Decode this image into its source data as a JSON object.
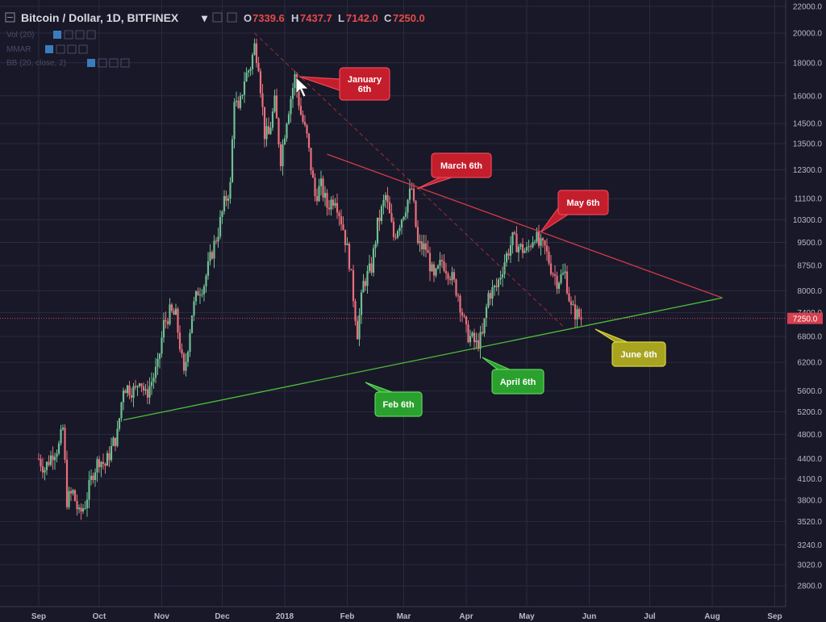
{
  "header": {
    "symbol": "Bitcoin / Dollar, 1D, BITFINEX",
    "o_label": "O",
    "o_value": "7339.6",
    "h_label": "H",
    "h_value": "7437.7",
    "l_label": "L",
    "l_value": "7142.0",
    "c_label": "C",
    "c_value": "7250.0",
    "indicators": [
      "Vol (20)",
      "MMAR",
      "BB (20, close, 2)"
    ]
  },
  "chart_data": {
    "type": "candlestick",
    "title": "Bitcoin / Dollar, 1D, BITFINEX",
    "y_scale": "log",
    "ylim": [
      2600,
      22500
    ],
    "y_ticks": [
      2800,
      3020,
      3240,
      3520,
      3800,
      4100,
      4400,
      4800,
      5200,
      5600,
      6200,
      6800,
      7400,
      8000,
      8750,
      9500,
      10300,
      11100,
      12300,
      13500,
      14500,
      16000,
      18000,
      20000,
      22000
    ],
    "y_tick_labels": [
      "2800.0",
      "3020.0",
      "3240.0",
      "3520.0",
      "3800.0",
      "4100.0",
      "4400.0",
      "4800.0",
      "5200.0",
      "5600.0",
      "6200.0",
      "6800.0",
      "7400.0",
      "8000.0",
      "8750.0",
      "9500.0",
      "10300.0",
      "11100.0",
      "12300.0",
      "13500.0",
      "14500.0",
      "16000.0",
      "18000.0",
      "20000.0",
      "22000.0"
    ],
    "x_months": [
      "Sep",
      "Oct",
      "Nov",
      "Dec",
      "2018",
      "Feb",
      "Mar",
      "Apr",
      "May",
      "Jun",
      "Jul",
      "Aug",
      "Sep"
    ],
    "last_price": 7250.0,
    "last_price_label": "7250.0",
    "trend_points": [
      [
        "2017-09-01",
        4400
      ],
      [
        "2017-09-04",
        4250
      ],
      [
        "2017-09-08",
        4500
      ],
      [
        "2017-09-11",
        4600
      ],
      [
        "2017-09-13",
        4900
      ],
      [
        "2017-09-15",
        3800
      ],
      [
        "2017-09-18",
        3900
      ],
      [
        "2017-09-21",
        3600
      ],
      [
        "2017-09-24",
        3750
      ],
      [
        "2017-09-28",
        4200
      ],
      [
        "2017-10-01",
        4400
      ],
      [
        "2017-10-04",
        4300
      ],
      [
        "2017-10-08",
        4650
      ],
      [
        "2017-10-10",
        4800
      ],
      [
        "2017-10-13",
        5700
      ],
      [
        "2017-10-16",
        5650
      ],
      [
        "2017-10-19",
        5600
      ],
      [
        "2017-10-21",
        5900
      ],
      [
        "2017-10-24",
        5500
      ],
      [
        "2017-10-27",
        5800
      ],
      [
        "2017-10-30",
        6100
      ],
      [
        "2017-11-02",
        7100
      ],
      [
        "2017-11-05",
        7400
      ],
      [
        "2017-11-08",
        7300
      ],
      [
        "2017-11-10",
        6600
      ],
      [
        "2017-11-12",
        5900
      ],
      [
        "2017-11-14",
        6600
      ],
      [
        "2017-11-16",
        7400
      ],
      [
        "2017-11-19",
        8000
      ],
      [
        "2017-11-22",
        8200
      ],
      [
        "2017-11-26",
        9200
      ],
      [
        "2017-11-29",
        9900
      ],
      [
        "2017-12-02",
        10900
      ],
      [
        "2017-12-05",
        11600
      ],
      [
        "2017-12-07",
        16000
      ],
      [
        "2017-12-09",
        15000
      ],
      [
        "2017-12-12",
        17000
      ],
      [
        "2017-12-15",
        17800
      ],
      [
        "2017-12-17",
        19100
      ],
      [
        "2017-12-19",
        18000
      ],
      [
        "2017-12-22",
        14000
      ],
      [
        "2017-12-24",
        13900
      ],
      [
        "2017-12-27",
        15600
      ],
      [
        "2017-12-30",
        12800
      ],
      [
        "2018-01-02",
        14800
      ],
      [
        "2018-01-06",
        17100
      ],
      [
        "2018-01-09",
        15000
      ],
      [
        "2018-01-12",
        13800
      ],
      [
        "2018-01-16",
        11200
      ],
      [
        "2018-01-19",
        11600
      ],
      [
        "2018-01-22",
        10800
      ],
      [
        "2018-01-26",
        11200
      ],
      [
        "2018-01-30",
        10000
      ],
      [
        "2018-02-02",
        8900
      ],
      [
        "2018-02-06",
        6900
      ],
      [
        "2018-02-09",
        8200
      ],
      [
        "2018-02-13",
        8700
      ],
      [
        "2018-02-16",
        10100
      ],
      [
        "2018-02-20",
        11200
      ],
      [
        "2018-02-24",
        9700
      ],
      [
        "2018-02-28",
        10400
      ],
      [
        "2018-03-05",
        11500
      ],
      [
        "2018-03-08",
        9400
      ],
      [
        "2018-03-12",
        9300
      ],
      [
        "2018-03-16",
        8300
      ],
      [
        "2018-03-20",
        8900
      ],
      [
        "2018-03-24",
        8500
      ],
      [
        "2018-03-28",
        7900
      ],
      [
        "2018-04-01",
        6900
      ],
      [
        "2018-04-06",
        6600
      ],
      [
        "2018-04-09",
        6800
      ],
      [
        "2018-04-12",
        7900
      ],
      [
        "2018-04-16",
        8100
      ],
      [
        "2018-04-20",
        8900
      ],
      [
        "2018-04-24",
        9600
      ],
      [
        "2018-04-28",
        9300
      ],
      [
        "2018-05-01",
        9200
      ],
      [
        "2018-05-05",
        9800
      ],
      [
        "2018-05-07",
        9400
      ],
      [
        "2018-05-10",
        9300
      ],
      [
        "2018-05-13",
        8700
      ],
      [
        "2018-05-16",
        8300
      ],
      [
        "2018-05-20",
        8500
      ],
      [
        "2018-05-23",
        7500
      ],
      [
        "2018-05-26",
        7350
      ],
      [
        "2018-05-28",
        7250
      ]
    ],
    "annotations": [
      {
        "label": "January\n6th",
        "color": "red"
      },
      {
        "label": "March 6th",
        "color": "red"
      },
      {
        "label": "May 6th",
        "color": "red"
      },
      {
        "label": "Feb 6th",
        "color": "green"
      },
      {
        "label": "April 6th",
        "color": "green"
      },
      {
        "label": "June 6th",
        "color": "yellow"
      }
    ],
    "lines": [
      {
        "name": "resistance",
        "color": "#d43a4a",
        "from": [
          "2018-01-22",
          13000
        ],
        "to": [
          "2018-08-06",
          7800
        ]
      },
      {
        "name": "support",
        "color": "#4cbf3c",
        "from": [
          "2017-10-13",
          5050
        ],
        "to": [
          "2018-08-06",
          7800
        ]
      },
      {
        "name": "dashed-resistance",
        "color": "#b8343e",
        "from": [
          "2017-12-17",
          20000
        ],
        "to": [
          "2018-05-20",
          7000
        ]
      }
    ]
  }
}
